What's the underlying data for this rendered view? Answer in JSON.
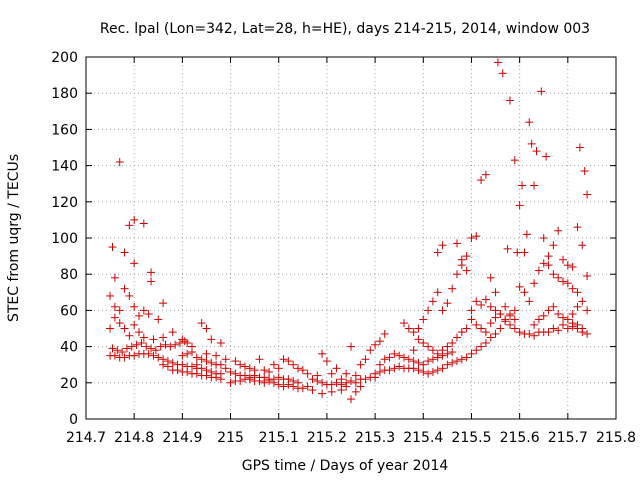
{
  "chart_data": {
    "type": "scatter",
    "title": "Rec. lpal (Lon=342, Lat=28, h=HE), days 214-215, 2014, window 003",
    "xlabel": "GPS time / Days of year 2014",
    "ylabel": "STEC from uqrg / TECUs",
    "xlim": [
      214.7,
      215.8
    ],
    "ylim": [
      0,
      200
    ],
    "xticks": [
      214.7,
      214.8,
      214.9,
      215,
      215.1,
      215.2,
      215.3,
      215.4,
      215.5,
      215.6,
      215.7,
      215.8
    ],
    "xtick_labels": [
      "214.7",
      "214.8",
      "214.9",
      "215",
      "215.1",
      "215.2",
      "215.3",
      "215.4",
      "215.5",
      "215.6",
      "215.7",
      "215.8"
    ],
    "yticks": [
      0,
      20,
      40,
      60,
      80,
      100,
      120,
      140,
      160,
      180,
      200
    ],
    "ytick_labels": [
      "0",
      "20",
      "40",
      "60",
      "80",
      "100",
      "120",
      "140",
      "160",
      "180",
      "200"
    ],
    "grid": true,
    "legend": "none",
    "marker": "plus",
    "color": "#cc0000",
    "points": [
      [
        214.755,
        95
      ],
      [
        214.76,
        78
      ],
      [
        214.77,
        142
      ],
      [
        214.78,
        92
      ],
      [
        214.79,
        107
      ],
      [
        214.8,
        110
      ],
      [
        214.8,
        86
      ],
      [
        214.82,
        108
      ],
      [
        214.835,
        81
      ],
      [
        214.835,
        76
      ],
      [
        214.75,
        68
      ],
      [
        214.76,
        62
      ],
      [
        214.77,
        60
      ],
      [
        214.78,
        72
      ],
      [
        214.79,
        68
      ],
      [
        214.8,
        62
      ],
      [
        214.81,
        57
      ],
      [
        214.82,
        60
      ],
      [
        214.83,
        58
      ],
      [
        214.85,
        55
      ],
      [
        214.86,
        64
      ],
      [
        214.75,
        50
      ],
      [
        214.76,
        56
      ],
      [
        214.77,
        53
      ],
      [
        214.78,
        50
      ],
      [
        214.79,
        46
      ],
      [
        214.8,
        52
      ],
      [
        214.81,
        48
      ],
      [
        214.82,
        45
      ],
      [
        214.84,
        44
      ],
      [
        214.86,
        45
      ],
      [
        214.88,
        48
      ],
      [
        214.9,
        44
      ],
      [
        214.91,
        42
      ],
      [
        214.92,
        40
      ],
      [
        214.94,
        53
      ],
      [
        214.95,
        50
      ],
      [
        214.96,
        44
      ],
      [
        214.98,
        42
      ],
      [
        214.755,
        39
      ],
      [
        214.765,
        38
      ],
      [
        214.775,
        37
      ],
      [
        214.785,
        39
      ],
      [
        214.795,
        40
      ],
      [
        214.805,
        41
      ],
      [
        214.815,
        42
      ],
      [
        214.825,
        40
      ],
      [
        214.835,
        39
      ],
      [
        214.845,
        38
      ],
      [
        214.855,
        40
      ],
      [
        214.865,
        41
      ],
      [
        214.875,
        40
      ],
      [
        214.885,
        41
      ],
      [
        214.895,
        42
      ],
      [
        214.905,
        43
      ],
      [
        214.75,
        35
      ],
      [
        214.76,
        35
      ],
      [
        214.77,
        34
      ],
      [
        214.78,
        34
      ],
      [
        214.79,
        35
      ],
      [
        214.8,
        35
      ],
      [
        214.81,
        36
      ],
      [
        214.82,
        36
      ],
      [
        214.83,
        36
      ],
      [
        214.84,
        35
      ],
      [
        214.85,
        34
      ],
      [
        214.86,
        33
      ],
      [
        214.87,
        32
      ],
      [
        214.88,
        31
      ],
      [
        214.89,
        30
      ],
      [
        214.9,
        30
      ],
      [
        214.91,
        29
      ],
      [
        214.92,
        29
      ],
      [
        214.93,
        28
      ],
      [
        214.94,
        28
      ],
      [
        214.95,
        27
      ],
      [
        214.96,
        26
      ],
      [
        214.97,
        25
      ],
      [
        214.98,
        25
      ],
      [
        214.86,
        30
      ],
      [
        214.87,
        29
      ],
      [
        214.88,
        27
      ],
      [
        214.89,
        27
      ],
      [
        214.9,
        26
      ],
      [
        214.91,
        26
      ],
      [
        214.92,
        25
      ],
      [
        214.93,
        25
      ],
      [
        214.94,
        24
      ],
      [
        214.95,
        24
      ],
      [
        214.96,
        23
      ],
      [
        214.97,
        23
      ],
      [
        214.98,
        22
      ],
      [
        214.9,
        35
      ],
      [
        214.91,
        36
      ],
      [
        214.92,
        37
      ],
      [
        214.93,
        34
      ],
      [
        214.94,
        33
      ],
      [
        214.95,
        32
      ],
      [
        214.96,
        31
      ],
      [
        214.97,
        30
      ],
      [
        214.98,
        30
      ],
      [
        214.99,
        28
      ],
      [
        214.93,
        30
      ],
      [
        214.95,
        36
      ],
      [
        214.97,
        35
      ],
      [
        214.99,
        33
      ],
      [
        215.01,
        32
      ],
      [
        215.02,
        30
      ],
      [
        215.03,
        29
      ],
      [
        215.04,
        28
      ],
      [
        215.05,
        27
      ],
      [
        215.06,
        33
      ],
      [
        215.07,
        27
      ],
      [
        215.08,
        26
      ],
      [
        215.09,
        30
      ],
      [
        215.1,
        28
      ],
      [
        215.11,
        33
      ],
      [
        215.12,
        32
      ],
      [
        215.13,
        30
      ],
      [
        215.14,
        28
      ],
      [
        215.15,
        27
      ],
      [
        215.16,
        25
      ],
      [
        215.0,
        26
      ],
      [
        215.01,
        25
      ],
      [
        215.02,
        24
      ],
      [
        215.03,
        24
      ],
      [
        215.04,
        23
      ],
      [
        215.05,
        24
      ],
      [
        215.06,
        23
      ],
      [
        215.07,
        23
      ],
      [
        215.08,
        22
      ],
      [
        215.09,
        22
      ],
      [
        215.1,
        23
      ],
      [
        215.11,
        22
      ],
      [
        215.12,
        22
      ],
      [
        215.13,
        21
      ],
      [
        215.14,
        20
      ],
      [
        215.0,
        20
      ],
      [
        215.01,
        21
      ],
      [
        215.02,
        21
      ],
      [
        215.03,
        22
      ],
      [
        215.04,
        22
      ],
      [
        215.05,
        21
      ],
      [
        215.06,
        21
      ],
      [
        215.07,
        20
      ],
      [
        215.08,
        21
      ],
      [
        215.09,
        20
      ],
      [
        215.1,
        19
      ],
      [
        215.11,
        18
      ],
      [
        215.12,
        19
      ],
      [
        215.13,
        18
      ],
      [
        215.14,
        17
      ],
      [
        215.15,
        17
      ],
      [
        215.16,
        18
      ],
      [
        215.17,
        22
      ],
      [
        215.18,
        21
      ],
      [
        215.19,
        20
      ],
      [
        215.2,
        19
      ],
      [
        215.21,
        19
      ],
      [
        215.22,
        20
      ],
      [
        215.23,
        19
      ],
      [
        215.24,
        20
      ],
      [
        215.25,
        21
      ],
      [
        215.26,
        20
      ],
      [
        215.27,
        22
      ],
      [
        215.28,
        22
      ],
      [
        215.29,
        23
      ],
      [
        215.3,
        23
      ],
      [
        215.18,
        24
      ],
      [
        215.19,
        36
      ],
      [
        215.2,
        32
      ],
      [
        215.21,
        25
      ],
      [
        215.22,
        28
      ],
      [
        215.23,
        22
      ],
      [
        215.24,
        25
      ],
      [
        215.25,
        40
      ],
      [
        215.26,
        24
      ],
      [
        215.27,
        30
      ],
      [
        215.28,
        33
      ],
      [
        215.29,
        38
      ],
      [
        215.3,
        41
      ],
      [
        215.31,
        43
      ],
      [
        215.32,
        47
      ],
      [
        215.17,
        16
      ],
      [
        215.19,
        14
      ],
      [
        215.21,
        15
      ],
      [
        215.23,
        16
      ],
      [
        215.24,
        18
      ],
      [
        215.25,
        11
      ],
      [
        215.26,
        15
      ],
      [
        215.27,
        18
      ],
      [
        215.3,
        25
      ],
      [
        215.31,
        26
      ],
      [
        215.32,
        27
      ],
      [
        215.33,
        27
      ],
      [
        215.34,
        28
      ],
      [
        215.35,
        29
      ],
      [
        215.36,
        28
      ],
      [
        215.37,
        28
      ],
      [
        215.38,
        28
      ],
      [
        215.39,
        27
      ],
      [
        215.4,
        26
      ],
      [
        215.41,
        25
      ],
      [
        215.42,
        26
      ],
      [
        215.43,
        27
      ],
      [
        215.44,
        28
      ],
      [
        215.31,
        30
      ],
      [
        215.32,
        33
      ],
      [
        215.33,
        34
      ],
      [
        215.34,
        36
      ],
      [
        215.35,
        35
      ],
      [
        215.36,
        34
      ],
      [
        215.37,
        33
      ],
      [
        215.38,
        32
      ],
      [
        215.39,
        31
      ],
      [
        215.4,
        30
      ],
      [
        215.41,
        32
      ],
      [
        215.42,
        33
      ],
      [
        215.43,
        34
      ],
      [
        215.44,
        35
      ],
      [
        215.45,
        36
      ],
      [
        215.46,
        37
      ],
      [
        215.36,
        53
      ],
      [
        215.37,
        50
      ],
      [
        215.38,
        48
      ],
      [
        215.39,
        44
      ],
      [
        215.4,
        42
      ],
      [
        215.41,
        40
      ],
      [
        215.42,
        38
      ],
      [
        215.43,
        36
      ],
      [
        215.44,
        38
      ],
      [
        215.45,
        40
      ],
      [
        215.46,
        42
      ],
      [
        215.47,
        45
      ],
      [
        215.48,
        48
      ],
      [
        215.49,
        50
      ],
      [
        215.38,
        38
      ],
      [
        215.39,
        50
      ],
      [
        215.4,
        55
      ],
      [
        215.41,
        60
      ],
      [
        215.42,
        65
      ],
      [
        215.43,
        70
      ],
      [
        215.44,
        60
      ],
      [
        215.45,
        64
      ],
      [
        215.46,
        72
      ],
      [
        215.47,
        80
      ],
      [
        215.48,
        85
      ],
      [
        215.49,
        90
      ],
      [
        215.43,
        92
      ],
      [
        215.44,
        96
      ],
      [
        215.47,
        97
      ],
      [
        215.48,
        88
      ],
      [
        215.49,
        82
      ],
      [
        215.5,
        100
      ],
      [
        215.51,
        101
      ],
      [
        215.52,
        132
      ],
      [
        215.53,
        135
      ],
      [
        215.54,
        78
      ],
      [
        215.55,
        70
      ],
      [
        215.45,
        30
      ],
      [
        215.46,
        31
      ],
      [
        215.47,
        32
      ],
      [
        215.48,
        33
      ],
      [
        215.49,
        34
      ],
      [
        215.5,
        36
      ],
      [
        215.51,
        38
      ],
      [
        215.52,
        40
      ],
      [
        215.53,
        42
      ],
      [
        215.54,
        45
      ],
      [
        215.55,
        47
      ],
      [
        215.56,
        50
      ],
      [
        215.57,
        55
      ],
      [
        215.58,
        58
      ],
      [
        215.59,
        60
      ],
      [
        215.5,
        55
      ],
      [
        215.51,
        52
      ],
      [
        215.52,
        50
      ],
      [
        215.53,
        48
      ],
      [
        215.54,
        53
      ],
      [
        215.55,
        56
      ],
      [
        215.56,
        58
      ],
      [
        215.57,
        54
      ],
      [
        215.58,
        52
      ],
      [
        215.59,
        50
      ],
      [
        215.6,
        48
      ],
      [
        215.61,
        47
      ],
      [
        215.62,
        47
      ],
      [
        215.63,
        46
      ],
      [
        215.64,
        48
      ],
      [
        215.65,
        48
      ],
      [
        215.5,
        60
      ],
      [
        215.51,
        65
      ],
      [
        215.52,
        63
      ],
      [
        215.53,
        66
      ],
      [
        215.54,
        62
      ],
      [
        215.55,
        60
      ],
      [
        215.56,
        58
      ],
      [
        215.57,
        62
      ],
      [
        215.58,
        57
      ],
      [
        215.59,
        55
      ],
      [
        215.555,
        197
      ],
      [
        215.565,
        191
      ],
      [
        215.575,
        94
      ],
      [
        215.58,
        176
      ],
      [
        215.59,
        143
      ],
      [
        215.595,
        92
      ],
      [
        215.6,
        118
      ],
      [
        215.605,
        129
      ],
      [
        215.61,
        92
      ],
      [
        215.615,
        102
      ],
      [
        215.62,
        164
      ],
      [
        215.625,
        152
      ],
      [
        215.63,
        129
      ],
      [
        215.635,
        148
      ],
      [
        215.645,
        181
      ],
      [
        215.65,
        100
      ],
      [
        215.655,
        145
      ],
      [
        215.6,
        73
      ],
      [
        215.61,
        70
      ],
      [
        215.62,
        65
      ],
      [
        215.63,
        75
      ],
      [
        215.64,
        82
      ],
      [
        215.65,
        86
      ],
      [
        215.66,
        85
      ],
      [
        215.67,
        80
      ],
      [
        215.68,
        78
      ],
      [
        215.69,
        76
      ],
      [
        215.7,
        75
      ],
      [
        215.71,
        72
      ],
      [
        215.72,
        70
      ],
      [
        215.63,
        52
      ],
      [
        215.64,
        55
      ],
      [
        215.65,
        57
      ],
      [
        215.66,
        60
      ],
      [
        215.67,
        62
      ],
      [
        215.68,
        58
      ],
      [
        215.69,
        56
      ],
      [
        215.7,
        55
      ],
      [
        215.71,
        53
      ],
      [
        215.72,
        52
      ],
      [
        215.73,
        50
      ],
      [
        215.66,
        48
      ],
      [
        215.67,
        50
      ],
      [
        215.68,
        49
      ],
      [
        215.69,
        52
      ],
      [
        215.7,
        50
      ],
      [
        215.71,
        51
      ],
      [
        215.72,
        50
      ],
      [
        215.73,
        48
      ],
      [
        215.66,
        90
      ],
      [
        215.67,
        96
      ],
      [
        215.68,
        104
      ],
      [
        215.69,
        88
      ],
      [
        215.7,
        85
      ],
      [
        215.71,
        84
      ],
      [
        215.72,
        106
      ],
      [
        215.725,
        150
      ],
      [
        215.73,
        96
      ],
      [
        215.735,
        137
      ],
      [
        215.74,
        124
      ],
      [
        215.74,
        79
      ],
      [
        215.73,
        65
      ],
      [
        215.72,
        62
      ],
      [
        215.71,
        58
      ],
      [
        215.74,
        60
      ],
      [
        215.74,
        47
      ]
    ]
  }
}
